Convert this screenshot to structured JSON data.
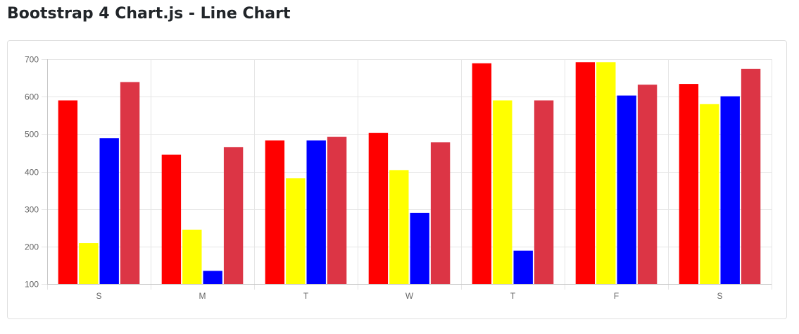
{
  "page": {
    "title": "Bootstrap 4 Chart.js - Line Chart"
  },
  "chart_data": {
    "type": "bar",
    "categories": [
      "S",
      "M",
      "T",
      "W",
      "T",
      "F",
      "S"
    ],
    "series": [
      {
        "color": "#ff0000",
        "values": [
          590,
          445,
          483,
          503,
          689,
          692,
          634
        ]
      },
      {
        "color": "#ffff00",
        "values": [
          209,
          245,
          382,
          404,
          590,
          692,
          580
        ]
      },
      {
        "color": "#0000ff",
        "values": [
          489,
          135,
          483,
          290,
          189,
          603,
          601
        ]
      },
      {
        "color": "#dc3545",
        "values": [
          639,
          465,
          493,
          478,
          590,
          632,
          674
        ]
      }
    ],
    "ylim": [
      100,
      700
    ],
    "yticks": [
      100,
      200,
      300,
      400,
      500,
      600,
      700
    ],
    "grid": true,
    "legend": "none"
  }
}
